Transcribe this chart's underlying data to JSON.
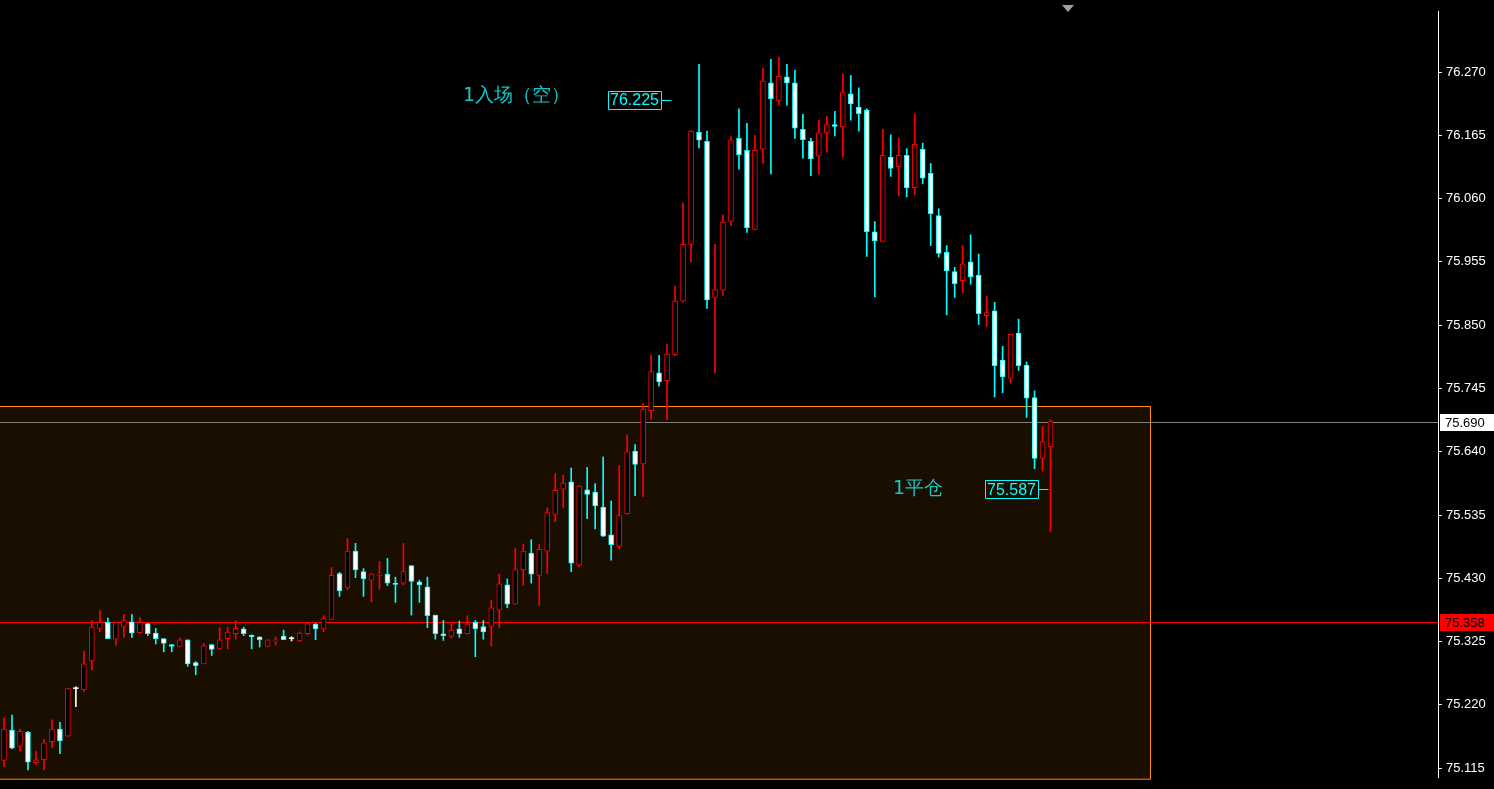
{
  "chart_data": {
    "type": "candlestick",
    "categories": [
      null,
      null,
      null,
      null,
      null,
      null,
      null,
      null,
      null,
      null,
      null,
      null,
      null,
      null,
      null,
      null,
      null,
      null,
      null,
      null,
      null,
      null,
      null,
      null,
      null,
      null,
      null,
      null,
      null,
      null,
      null,
      null,
      null,
      null,
      null,
      null,
      null,
      null,
      null,
      null,
      null,
      null,
      null,
      null,
      null,
      null,
      null,
      null,
      null,
      null,
      null,
      null,
      null,
      null,
      null,
      null,
      null,
      null,
      null,
      null,
      null,
      null,
      null,
      null,
      null,
      null,
      null,
      null,
      null,
      null,
      null,
      null,
      null,
      null,
      null,
      null,
      null,
      null,
      null,
      null,
      null,
      null,
      null,
      null,
      null,
      null,
      null,
      null,
      null,
      null,
      null,
      null,
      null,
      null,
      null,
      null,
      null,
      null,
      null,
      null,
      null,
      null,
      null,
      null,
      null,
      null,
      null,
      null,
      null,
      null,
      null,
      null,
      null,
      null,
      null,
      null,
      null,
      null,
      null,
      null,
      null,
      null,
      null,
      null,
      null,
      null,
      null,
      null,
      null,
      null,
      null,
      null,
      null,
      null,
      null,
      null,
      null,
      null,
      null,
      null,
      null,
      null,
      null,
      null,
      null,
      null,
      null,
      null,
      null,
      null,
      null,
      null,
      null,
      null,
      null,
      null,
      null,
      null,
      null,
      null,
      null,
      null,
      null,
      null,
      null,
      null,
      null,
      null,
      null,
      null,
      null,
      null,
      null,
      null,
      null,
      null,
      null,
      null,
      null,
      null
    ],
    "ohlc": [
      [
        75.128,
        75.198,
        75.118,
        75.18
      ],
      [
        75.178,
        75.203,
        75.147,
        75.148
      ],
      [
        75.151,
        75.18,
        75.143,
        75.176
      ],
      [
        75.175,
        75.176,
        75.112,
        75.125
      ],
      [
        75.124,
        75.143,
        75.121,
        75.129
      ],
      [
        75.129,
        75.163,
        75.112,
        75.157
      ],
      [
        75.159,
        75.195,
        75.149,
        75.18
      ],
      [
        75.18,
        75.191,
        75.139,
        75.16
      ],
      [
        75.168,
        75.247,
        75.168,
        75.247
      ],
      [
        75.247,
        75.25,
        75.217,
        75.247
      ],
      [
        75.245,
        75.309,
        75.242,
        75.288
      ],
      [
        75.293,
        75.36,
        75.278,
        75.349
      ],
      [
        75.347,
        75.376,
        75.341,
        75.357
      ],
      [
        75.357,
        75.364,
        75.33,
        75.33
      ],
      [
        75.329,
        75.357,
        75.319,
        75.357
      ],
      [
        75.35,
        75.37,
        75.332,
        75.36
      ],
      [
        75.358,
        75.37,
        75.332,
        75.339
      ],
      [
        75.34,
        75.365,
        75.339,
        75.357
      ],
      [
        75.355,
        75.355,
        75.335,
        75.338
      ],
      [
        75.339,
        75.347,
        75.321,
        75.33
      ],
      [
        75.33,
        75.33,
        75.308,
        75.322
      ],
      [
        75.32,
        75.32,
        75.308,
        75.317
      ],
      [
        75.317,
        75.331,
        75.317,
        75.328
      ],
      [
        75.328,
        75.328,
        75.284,
        75.288
      ],
      [
        75.29,
        75.292,
        75.27,
        75.285
      ],
      [
        75.288,
        75.322,
        75.288,
        75.318
      ],
      [
        75.32,
        75.32,
        75.302,
        75.312
      ],
      [
        75.313,
        75.348,
        75.312,
        75.328
      ],
      [
        75.33,
        75.349,
        75.313,
        75.341
      ],
      [
        75.338,
        75.36,
        75.329,
        75.347
      ],
      [
        75.346,
        75.349,
        75.335,
        75.338
      ],
      [
        75.336,
        75.336,
        75.313,
        75.333
      ],
      [
        75.333,
        75.333,
        75.316,
        75.328
      ],
      [
        75.317,
        75.328,
        75.317,
        75.328
      ],
      [
        75.326,
        75.333,
        75.319,
        75.328
      ],
      [
        75.334,
        75.344,
        75.328,
        75.328
      ],
      [
        75.33,
        75.333,
        75.326,
        75.33
      ],
      [
        75.326,
        75.341,
        75.325,
        75.339
      ],
      [
        75.338,
        75.355,
        75.336,
        75.355
      ],
      [
        75.354,
        75.355,
        75.328,
        75.346
      ],
      [
        75.346,
        75.368,
        75.341,
        75.363
      ],
      [
        75.362,
        75.448,
        75.362,
        75.435
      ],
      [
        75.438,
        75.44,
        75.4,
        75.409
      ],
      [
        75.414,
        75.496,
        75.411,
        75.475
      ],
      [
        75.475,
        75.488,
        75.431,
        75.444
      ],
      [
        75.441,
        75.446,
        75.4,
        75.429
      ],
      [
        75.427,
        75.438,
        75.391,
        75.437
      ],
      [
        75.435,
        75.458,
        75.412,
        75.437
      ],
      [
        75.437,
        75.463,
        75.418,
        75.422
      ],
      [
        75.421,
        75.432,
        75.39,
        75.42
      ],
      [
        75.422,
        75.488,
        75.419,
        75.441
      ],
      [
        75.451,
        75.451,
        75.369,
        75.425
      ],
      [
        75.424,
        75.427,
        75.39,
        75.419
      ],
      [
        75.416,
        75.432,
        75.348,
        75.368
      ],
      [
        75.369,
        75.369,
        75.329,
        75.338
      ],
      [
        75.338,
        75.36,
        75.327,
        75.335
      ],
      [
        75.334,
        75.354,
        75.331,
        75.344
      ],
      [
        75.346,
        75.359,
        75.332,
        75.338
      ],
      [
        75.338,
        75.368,
        75.338,
        75.354
      ],
      [
        75.357,
        75.36,
        75.3,
        75.346
      ],
      [
        75.35,
        75.36,
        75.329,
        75.341
      ],
      [
        75.35,
        75.394,
        75.318,
        75.381
      ],
      [
        75.377,
        75.437,
        75.348,
        75.421
      ],
      [
        75.419,
        75.429,
        75.381,
        75.387
      ],
      [
        75.387,
        75.48,
        75.387,
        75.444
      ],
      [
        75.444,
        75.487,
        75.418,
        75.475
      ],
      [
        75.472,
        75.494,
        75.422,
        75.437
      ],
      [
        75.435,
        75.487,
        75.385,
        75.478
      ],
      [
        75.475,
        75.547,
        75.438,
        75.539
      ],
      [
        75.536,
        75.604,
        75.524,
        75.576
      ],
      [
        75.578,
        75.601,
        75.547,
        75.588
      ],
      [
        75.59,
        75.613,
        75.441,
        75.455
      ],
      [
        75.452,
        75.584,
        75.449,
        75.583
      ],
      [
        75.577,
        75.614,
        75.529,
        75.569
      ],
      [
        75.573,
        75.587,
        75.512,
        75.55
      ],
      [
        75.548,
        75.631,
        75.499,
        75.5
      ],
      [
        75.502,
        75.558,
        75.46,
        75.486
      ],
      [
        75.483,
        75.617,
        75.479,
        75.534
      ],
      [
        75.537,
        75.668,
        75.536,
        75.64
      ],
      [
        75.641,
        75.652,
        75.567,
        75.619
      ],
      [
        75.62,
        75.72,
        75.566,
        75.711
      ],
      [
        75.708,
        75.801,
        75.694,
        75.773
      ],
      [
        75.771,
        75.8,
        75.749,
        75.756
      ],
      [
        75.758,
        75.818,
        75.693,
        75.802
      ],
      [
        75.801,
        75.915,
        75.8,
        75.89
      ],
      [
        75.89,
        76.053,
        75.888,
        75.984
      ],
      [
        75.984,
        76.173,
        75.955,
        76.172
      ],
      [
        76.17,
        76.283,
        76.144,
        76.157
      ],
      [
        76.155,
        76.172,
        75.878,
        75.892
      ],
      [
        75.896,
        75.984,
        75.771,
        75.909
      ],
      [
        75.908,
        76.033,
        75.9,
        76.021
      ],
      [
        76.022,
        76.163,
        76.015,
        76.157
      ],
      [
        76.16,
        76.209,
        76.109,
        76.133
      ],
      [
        76.14,
        76.185,
        76.004,
        76.012
      ],
      [
        76.009,
        76.165,
        76.008,
        76.14
      ],
      [
        76.142,
        76.276,
        76.119,
        76.255
      ],
      [
        76.252,
        76.291,
        76.101,
        76.226
      ],
      [
        76.223,
        76.295,
        76.215,
        76.263
      ],
      [
        76.262,
        76.283,
        76.215,
        76.252
      ],
      [
        76.252,
        76.273,
        76.16,
        76.177
      ],
      [
        76.175,
        76.2,
        76.127,
        76.158
      ],
      [
        76.155,
        76.16,
        76.098,
        76.126
      ],
      [
        76.131,
        76.19,
        76.101,
        76.169
      ],
      [
        76.169,
        76.197,
        76.137,
        76.183
      ],
      [
        76.183,
        76.205,
        76.164,
        76.18
      ],
      [
        76.179,
        76.267,
        76.129,
        76.236
      ],
      [
        76.234,
        76.264,
        76.19,
        76.217
      ],
      [
        76.212,
        76.244,
        76.172,
        76.201
      ],
      [
        76.207,
        76.209,
        75.964,
        76.005
      ],
      [
        76.005,
        76.022,
        75.897,
        75.99
      ],
      [
        75.989,
        76.175,
        75.989,
        76.132
      ],
      [
        76.129,
        76.166,
        76.097,
        76.11
      ],
      [
        76.113,
        76.16,
        76.065,
        76.132
      ],
      [
        76.132,
        76.143,
        76.063,
        76.078
      ],
      [
        76.078,
        76.2,
        76.066,
        76.15
      ],
      [
        76.142,
        76.152,
        76.085,
        76.094
      ],
      [
        76.102,
        76.118,
        75.982,
        76.035
      ],
      [
        76.032,
        76.043,
        75.963,
        75.969
      ],
      [
        75.971,
        75.982,
        75.867,
        75.94
      ],
      [
        75.939,
        75.946,
        75.896,
        75.919
      ],
      [
        75.924,
        75.982,
        75.904,
        75.952
      ],
      [
        75.955,
        76.0,
        75.918,
        75.93
      ],
      [
        75.933,
        75.968,
        75.851,
        75.869
      ],
      [
        75.866,
        75.898,
        75.848,
        75.871
      ],
      [
        75.874,
        75.888,
        75.731,
        75.783
      ],
      [
        75.792,
        75.815,
        75.738,
        75.764
      ],
      [
        75.762,
        75.835,
        75.754,
        75.835
      ],
      [
        75.837,
        75.86,
        75.775,
        75.783
      ],
      [
        75.784,
        75.789,
        75.697,
        75.729
      ],
      [
        75.73,
        75.741,
        75.612,
        75.629
      ],
      [
        75.629,
        75.682,
        75.608,
        75.657
      ],
      [
        75.648,
        75.693,
        75.507,
        75.69
      ],
      null,
      null,
      null,
      null,
      null,
      null,
      null,
      null,
      null,
      null,
      null,
      null,
      null,
      null,
      null,
      null,
      null,
      null,
      null,
      null,
      null,
      null,
      null,
      null,
      null,
      null,
      null,
      null,
      null,
      null,
      null,
      null,
      null,
      null,
      null,
      null,
      null,
      null,
      null,
      null,
      null,
      null,
      null,
      null,
      null,
      null,
      null,
      null
    ],
    "colors": [
      "#ff0000",
      "#00ffff",
      "#ff0000",
      "#00ffff",
      "#ff0000",
      "#ff0000",
      "#ff0000",
      "#00ffff",
      "#ff0000",
      "#ffffff",
      "#ff0000",
      "#ff0000",
      "#ff0000",
      "#00ffff",
      "#ff0000",
      "#ff0000",
      "#00ffff",
      "#ff0000",
      "#00ffff",
      "#00ffff",
      "#00ffff",
      "#00ffff",
      "#ff0000",
      "#00ffff",
      "#00ffff",
      "#ff0000",
      "#00ffff",
      "#ff0000",
      "#ff0000",
      "#ff0000",
      "#00ffff",
      "#00ffff",
      "#00ffff",
      "#ff0000",
      "#ff0000",
      "#00ffff",
      "#ffffff",
      "#ff0000",
      "#ff0000",
      "#00ffff",
      "#ff0000",
      "#ff0000",
      "#00ffff",
      "#ff0000",
      "#00ffff",
      "#00ffff",
      "#ff0000",
      "#ff0000",
      "#00ffff",
      "#00ffff",
      "#ff0000",
      "#00ffff",
      "#00ffff",
      "#00ffff",
      "#00ffff",
      "#00ffff",
      "#ff0000",
      "#00ffff",
      "#ff0000",
      "#00ffff",
      "#00ffff",
      "#ff0000",
      "#ff0000",
      "#00ffff",
      "#ff0000",
      "#ff0000",
      "#00ffff",
      "#ff0000",
      "#ff0000",
      "#ff0000",
      "#ff0000",
      "#00ffff",
      "#ff0000",
      "#00ffff",
      "#00ffff",
      "#00ffff",
      "#00ffff",
      "#ff0000",
      "#ff0000",
      "#00ffff",
      "#ff0000",
      "#ff0000",
      "#00ffff",
      "#ff0000",
      "#ff0000",
      "#ff0000",
      "#ff0000",
      "#00ffff",
      "#00ffff",
      "#ff0000",
      "#ff0000",
      "#ff0000",
      "#00ffff",
      "#00ffff",
      "#ff0000",
      "#ff0000",
      "#00ffff",
      "#ff0000",
      "#00ffff",
      "#00ffff",
      "#00ffff",
      "#00ffff",
      "#ff0000",
      "#ff0000",
      "#00ffff",
      "#ff0000",
      "#00ffff",
      "#00ffff",
      "#00ffff",
      "#00ffff",
      "#ff0000",
      "#00ffff",
      "#ff0000",
      "#00ffff",
      "#ff0000",
      "#00ffff",
      "#00ffff",
      "#00ffff",
      "#00ffff",
      "#00ffff",
      "#ff0000",
      "#00ffff",
      "#00ffff",
      "#ff0000",
      "#00ffff",
      "#00ffff",
      "#ff0000",
      "#00ffff",
      "#00ffff",
      "#00ffff",
      "#ff0000",
      "#ff0000",
      null,
      null,
      null,
      null,
      null,
      null,
      null,
      null,
      null,
      null,
      null,
      null,
      null,
      null,
      null,
      null,
      null,
      null,
      null,
      null,
      null,
      null,
      null,
      null,
      null,
      null,
      null,
      null,
      null,
      null,
      null,
      null,
      null,
      null,
      null,
      null,
      null,
      null,
      null,
      null,
      null,
      null,
      null,
      null,
      null,
      null,
      null,
      null
    ],
    "ylim": [
      75.1,
      76.37
    ],
    "yticks": [
      {
        "value": 75.115,
        "label": "75.115"
      },
      {
        "value": 75.22,
        "label": "75.220"
      },
      {
        "value": 75.325,
        "label": "75.325"
      },
      {
        "value": 75.43,
        "label": "75.430"
      },
      {
        "value": 75.535,
        "label": "75.535"
      },
      {
        "value": 75.64,
        "label": "75.640"
      },
      {
        "value": 75.745,
        "label": "75.745"
      },
      {
        "value": 75.85,
        "label": "75.850"
      },
      {
        "value": 75.955,
        "label": "75.955"
      },
      {
        "value": 76.06,
        "label": "76.060"
      },
      {
        "value": 76.165,
        "label": "76.165"
      },
      {
        "value": 76.27,
        "label": "76.270"
      }
    ],
    "tick_labels": "y",
    "grid": false,
    "legend": false,
    "ref_lines": [
      {
        "axis": "y",
        "value": 75.69,
        "label": "75.690",
        "color": "#808080"
      },
      {
        "axis": "y",
        "value": 75.358,
        "label": "75.358",
        "color": "#ff0000"
      }
    ],
    "bands": [
      {
        "axis": "y",
        "from": 75.1,
        "to": 75.716,
        "color": "#ff8c00"
      }
    ],
    "annotations": [
      "1入场（空）",
      "76.225",
      "1平仓",
      "75.587"
    ]
  }
}
